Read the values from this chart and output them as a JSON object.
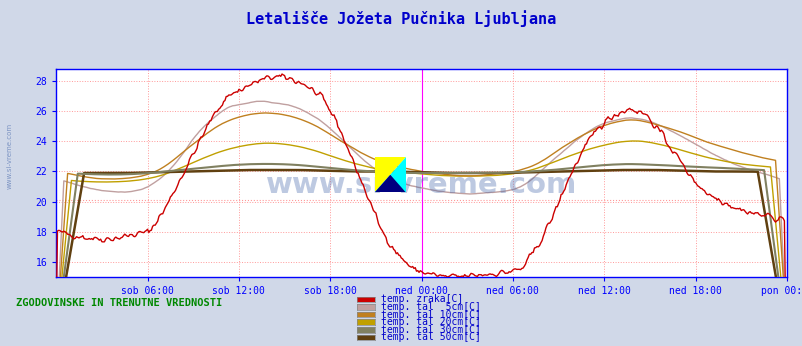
{
  "title": "Letališče Jožeta Pučnika Ljubljana",
  "title_color": "#0000cc",
  "bg_color": "#d0d8e8",
  "plot_bg_color": "#ffffff",
  "grid_color": "#ff9999",
  "yticks": [
    16,
    18,
    20,
    22,
    24,
    26,
    28
  ],
  "ylim": [
    15.0,
    28.8
  ],
  "tick_labels": [
    "sob 06:00",
    "sob 12:00",
    "sob 18:00",
    "ned 00:00",
    "ned 06:00",
    "ned 12:00",
    "ned 18:00",
    "pon 00:00"
  ],
  "n_points": 576,
  "vline_x": 288,
  "vline_color": "#ff00ff",
  "hline_y": 20.1,
  "hline_color": "#ff9999",
  "watermark": "www.si-vreme.com",
  "watermark_color": "#4466aa",
  "watermark_alpha": 0.35,
  "left_label": "ZGODOVINSKE IN TRENUTNE VREDNOSTI",
  "left_label_color": "#008800",
  "legend_labels": [
    "temp. zraka[C]",
    "temp. tal  5cm[C]",
    "temp. tal 10cm[C]",
    "temp. tal 20cm[C]",
    "temp. tal 30cm[C]",
    "temp. tal 50cm[C]"
  ],
  "legend_colors": [
    "#cc0000",
    "#c0a0a0",
    "#c08020",
    "#c0a000",
    "#808060",
    "#604010"
  ],
  "line_widths": [
    1.0,
    1.0,
    1.0,
    1.0,
    1.5,
    1.8
  ],
  "axis_color": "#0000ff",
  "tick_color": "#0000cc",
  "font_family": "monospace"
}
